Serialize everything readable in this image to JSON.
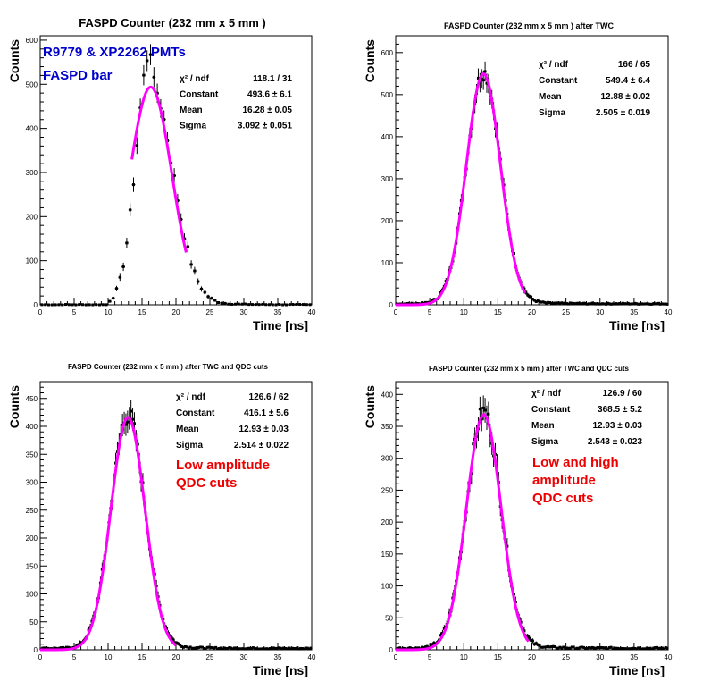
{
  "figure": {
    "panels": [
      {
        "title": "FASPD Counter (232 mm x 5 mm )",
        "xlabel": "Time [ns]",
        "ylabel": "Counts",
        "overlay": [
          "R9779 & XP2262 PMTs",
          "FASPD bar"
        ],
        "overlay_color": "#0000cc",
        "stats": [
          {
            "label": "χ² / ndf",
            "value": "118.1 / 31"
          },
          {
            "label": "Constant",
            "value": "493.6 ± 6.1"
          },
          {
            "label": "Mean",
            "value": "16.28 ± 0.05"
          },
          {
            "label": "Sigma",
            "value": "3.092 ± 0.051"
          }
        ]
      },
      {
        "title": "FASPD Counter (232 mm x 5 mm ) after TWC",
        "xlabel": "Time [ns]",
        "ylabel": "Counts",
        "overlay": [],
        "overlay_color": "#ee0000",
        "stats": [
          {
            "label": "χ² / ndf",
            "value": "166 / 65"
          },
          {
            "label": "Constant",
            "value": "549.4 ± 6.4"
          },
          {
            "label": "Mean",
            "value": "12.88 ± 0.02"
          },
          {
            "label": "Sigma",
            "value": "2.505 ± 0.019"
          }
        ]
      },
      {
        "title": "FASPD Counter (232 mm x 5 mm ) after TWC and QDC cuts",
        "xlabel": "Time [ns]",
        "ylabel": "Counts",
        "overlay": [
          "Low amplitude",
          "QDC cuts"
        ],
        "overlay_color": "#ee0000",
        "stats": [
          {
            "label": "χ² / ndf",
            "value": "126.6 / 62"
          },
          {
            "label": "Constant",
            "value": "416.1 ± 5.6"
          },
          {
            "label": "Mean",
            "value": "12.93 ± 0.03"
          },
          {
            "label": "Sigma",
            "value": "2.514 ± 0.022"
          }
        ]
      },
      {
        "title": "FASPD Counter (232 mm x 5 mm ) after TWC and QDC cuts",
        "xlabel": "Time [ns]",
        "ylabel": "Counts",
        "overlay": [
          "Low and high",
          "amplitude",
          "QDC cuts"
        ],
        "overlay_color": "#ee0000",
        "stats": [
          {
            "label": "χ² / ndf",
            "value": "126.9 / 60"
          },
          {
            "label": "Constant",
            "value": "368.5 ± 5.2"
          },
          {
            "label": "Mean",
            "value": "12.93 ± 0.03"
          },
          {
            "label": "Sigma",
            "value": "2.543 ± 0.023"
          }
        ]
      }
    ]
  },
  "chart_data": [
    {
      "type": "scatter",
      "xlim": [
        0,
        40
      ],
      "ylim": [
        0,
        610
      ],
      "xticks": [
        0,
        5,
        10,
        15,
        20,
        25,
        30,
        35,
        40
      ],
      "yticks": [
        0,
        100,
        200,
        300,
        400,
        500,
        600
      ],
      "bin_width": 0.5,
      "histogram": {
        "constant": 493.6,
        "mean": 16.28,
        "sigma": 3.092,
        "rise": "sharp",
        "peak": 580
      },
      "fit": {
        "type": "gaussian",
        "constant": 493.6,
        "mean": 16.28,
        "sigma": 3.092,
        "x_range": [
          13.5,
          21.5
        ],
        "color": "#ff00ff"
      }
    },
    {
      "type": "scatter",
      "xlim": [
        0,
        40
      ],
      "ylim": [
        0,
        640
      ],
      "xticks": [
        0,
        5,
        10,
        15,
        20,
        25,
        30,
        35,
        40
      ],
      "yticks": [
        0,
        100,
        200,
        300,
        400,
        500,
        600
      ],
      "bin_width": 0.25,
      "histogram": {
        "constant": 549.4,
        "mean": 12.88,
        "sigma": 2.505,
        "peak": 590
      },
      "fit": {
        "type": "gaussian",
        "constant": 549.4,
        "mean": 12.88,
        "sigma": 2.505,
        "x_range": [
          0,
          19
        ],
        "color": "#ff00ff"
      }
    },
    {
      "type": "scatter",
      "xlim": [
        0,
        40
      ],
      "ylim": [
        0,
        480
      ],
      "xticks": [
        0,
        5,
        10,
        15,
        20,
        25,
        30,
        35,
        40
      ],
      "yticks": [
        0,
        50,
        100,
        150,
        200,
        250,
        300,
        350,
        400,
        450
      ],
      "bin_width": 0.25,
      "histogram": {
        "constant": 416.1,
        "mean": 12.93,
        "sigma": 2.514,
        "peak": 445
      },
      "fit": {
        "type": "gaussian",
        "constant": 416.1,
        "mean": 12.93,
        "sigma": 2.514,
        "x_range": [
          0,
          20
        ],
        "color": "#ff00ff"
      }
    },
    {
      "type": "scatter",
      "xlim": [
        0,
        40
      ],
      "ylim": [
        0,
        420
      ],
      "xticks": [
        0,
        5,
        10,
        15,
        20,
        25,
        30,
        35,
        40
      ],
      "yticks": [
        0,
        50,
        100,
        150,
        200,
        250,
        300,
        350,
        400
      ],
      "bin_width": 0.25,
      "histogram": {
        "constant": 368.5,
        "mean": 12.93,
        "sigma": 2.543,
        "peak": 395
      },
      "fit": {
        "type": "gaussian",
        "constant": 368.5,
        "mean": 12.93,
        "sigma": 2.543,
        "x_range": [
          0,
          19.5
        ],
        "color": "#ff00ff"
      }
    }
  ]
}
